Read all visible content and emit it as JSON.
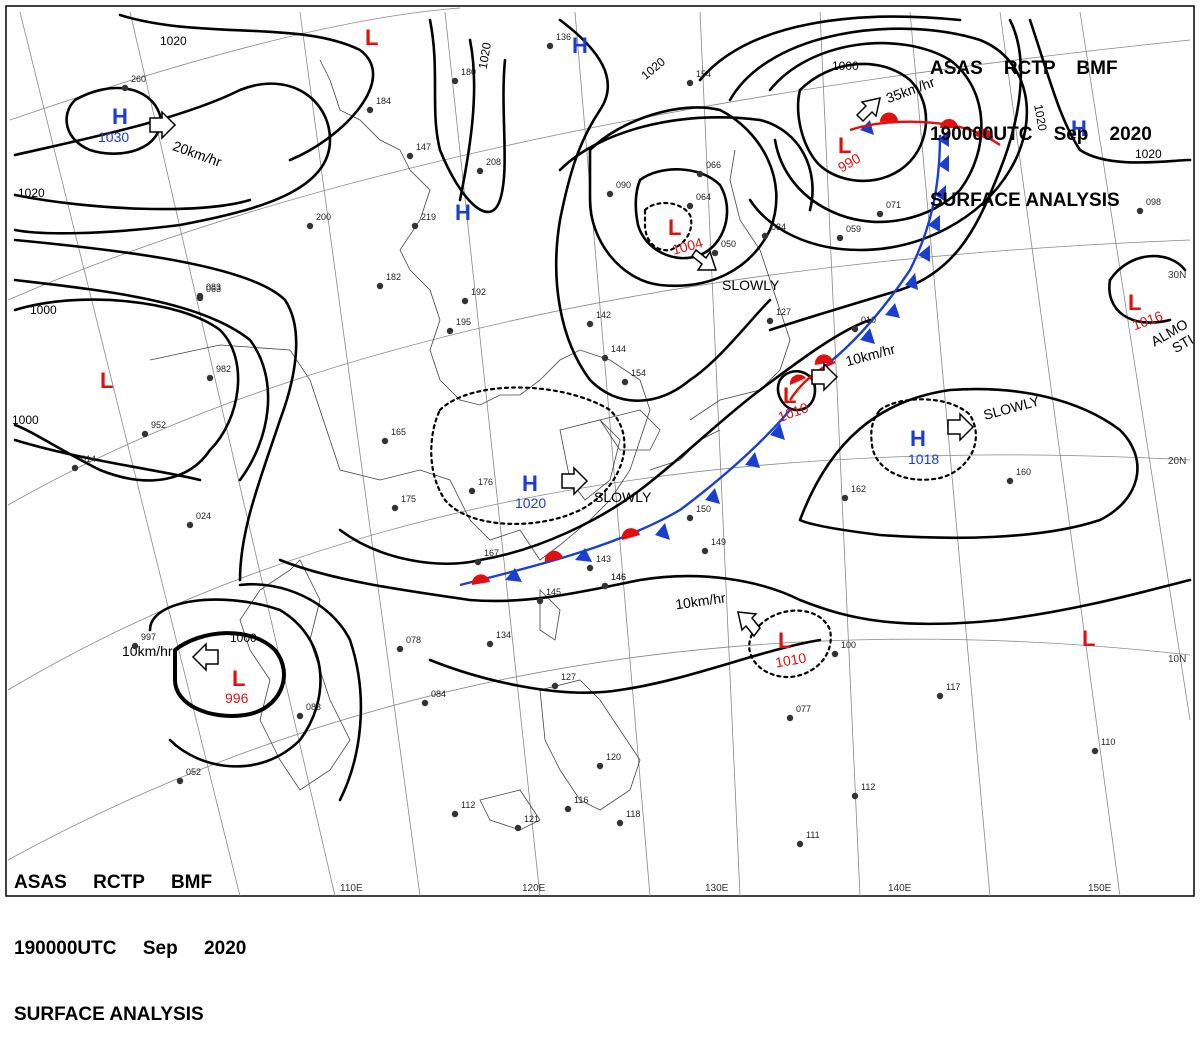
{
  "header": {
    "line1": "ASAS    RCTP    BMF",
    "line2": "190000UTC    Sep    2020",
    "line3": "SURFACE ANALYSIS"
  },
  "footer": {
    "line1": "ASAS     RCTP     BMF",
    "line2": "190000UTC     Sep     2020",
    "line3": "SURFACE ANALYSIS"
  },
  "longitudes": [
    "110E",
    "120E",
    "130E",
    "140E",
    "150E"
  ],
  "latitudes": [
    "30N",
    "20N",
    "10N"
  ],
  "isobar_labels": [
    {
      "id": "i1",
      "text": "1020"
    },
    {
      "id": "i2",
      "text": "1020"
    },
    {
      "id": "i3",
      "text": "1020"
    },
    {
      "id": "i4",
      "text": "1020"
    },
    {
      "id": "i5",
      "text": "1020"
    },
    {
      "id": "i6",
      "text": "1020"
    },
    {
      "id": "i7",
      "text": "1000"
    },
    {
      "id": "i8",
      "text": "1000"
    },
    {
      "id": "i9",
      "text": "1000"
    },
    {
      "id": "i10",
      "text": "1000"
    }
  ],
  "pressure_centers": [
    {
      "id": "h1",
      "type": "H",
      "value": "1030"
    },
    {
      "id": "h2",
      "type": "H",
      "value": ""
    },
    {
      "id": "h3",
      "type": "H",
      "value": ""
    },
    {
      "id": "h4",
      "type": "H",
      "value": "1020"
    },
    {
      "id": "h5",
      "type": "H",
      "value": "1018"
    },
    {
      "id": "h6",
      "type": "H",
      "value": ""
    },
    {
      "id": "l1",
      "type": "L",
      "value": ""
    },
    {
      "id": "l2",
      "type": "L",
      "value": "990"
    },
    {
      "id": "l3",
      "type": "L",
      "value": "1004"
    },
    {
      "id": "l4",
      "type": "L",
      "value": "1010"
    },
    {
      "id": "l5",
      "type": "L",
      "value": "1010"
    },
    {
      "id": "l6",
      "type": "L",
      "value": "996"
    },
    {
      "id": "l7",
      "type": "L",
      "value": ""
    },
    {
      "id": "l8",
      "type": "L",
      "value": "1016"
    },
    {
      "id": "l9",
      "type": "L",
      "value": ""
    }
  ],
  "motion_labels": [
    {
      "id": "m1",
      "text": "20km/hr"
    },
    {
      "id": "m2",
      "text": "35km/hr"
    },
    {
      "id": "m3",
      "text": "SLOWLY"
    },
    {
      "id": "m4",
      "text": "10km/hr"
    },
    {
      "id": "m5",
      "text": "SLOWLY"
    },
    {
      "id": "m6",
      "text": "SLOWLY"
    },
    {
      "id": "m7",
      "text": "10km/hr"
    },
    {
      "id": "m8",
      "text": "10km/hr"
    }
  ],
  "edge_text": {
    "t1": "ALMO",
    "t2": "STI"
  },
  "stations": [
    "260",
    "083",
    "182",
    "192",
    "195",
    "165",
    "176",
    "175",
    "167",
    "208",
    "219",
    "200",
    "142",
    "144",
    "154",
    "090",
    "064",
    "066",
    "050",
    "034",
    "059",
    "071",
    "127",
    "010",
    "149",
    "146",
    "143",
    "145",
    "134",
    "078",
    "084",
    "083",
    "052",
    "127",
    "120",
    "116",
    "112",
    "121",
    "118",
    "111",
    "100",
    "077",
    "112",
    "110",
    "117",
    "162",
    "160",
    "098",
    "982",
    "952",
    "014",
    "024",
    "997",
    "063",
    "184",
    "147",
    "136",
    "150",
    "154",
    "180",
    "146"
  ]
}
